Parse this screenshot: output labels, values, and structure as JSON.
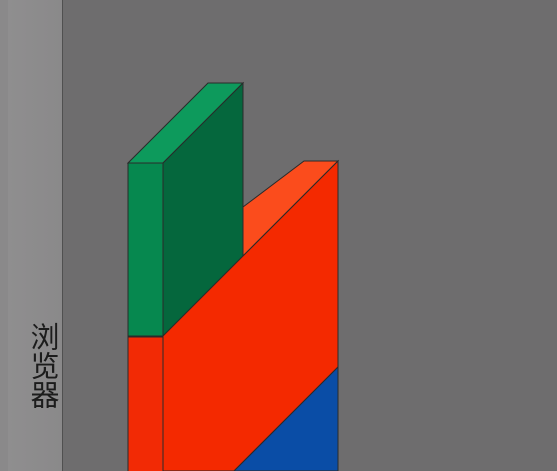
{
  "side_panel": {
    "label": "浏览器"
  },
  "colors": {
    "background": "#6e6d6e",
    "panel": "#8c8b8c",
    "green_front": "#06884f",
    "green_side": "#05673d",
    "green_top": "#0d9a5c",
    "red_front": "#f42900",
    "red_top": "#fb4c1c",
    "blue_face": "#0a4da6",
    "outline": "#2a2a2a"
  },
  "layers": [
    {
      "name": "green-layer"
    },
    {
      "name": "red-layer"
    },
    {
      "name": "blue-layer"
    }
  ]
}
